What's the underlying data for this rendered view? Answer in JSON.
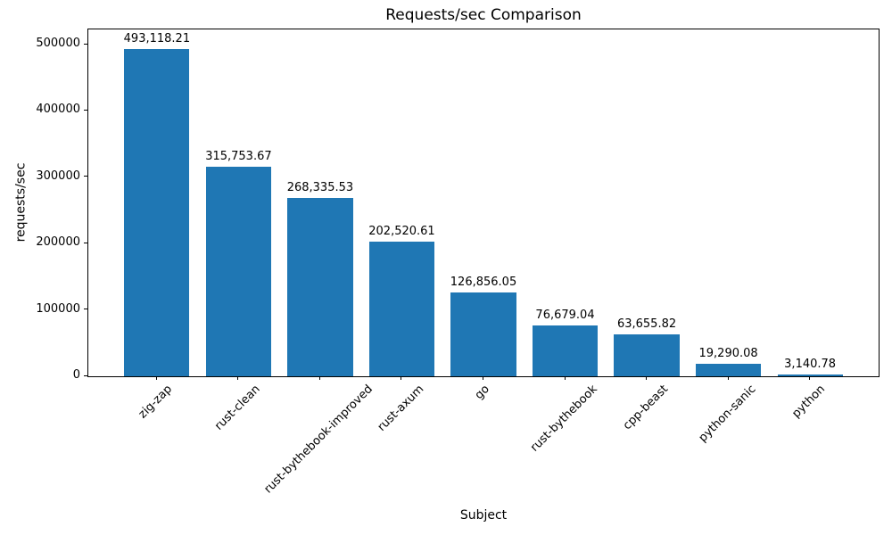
{
  "chart_data": {
    "type": "bar",
    "title": "Requests/sec Comparison",
    "xlabel": "Subject",
    "ylabel": "requests/sec",
    "categories": [
      "zig-zap",
      "rust-clean",
      "rust-bythebook-improved",
      "rust-axum",
      "go",
      "rust-bythebook",
      "cpp-beast",
      "python-sanic",
      "python"
    ],
    "values": [
      493118.21,
      315753.67,
      268335.53,
      202520.61,
      126856.05,
      76679.04,
      63655.82,
      19290.08,
      3140.78
    ],
    "bar_labels": [
      "493,118.21",
      "315,753.67",
      "268,335.53",
      "202,520.61",
      "126,856.05",
      "76,679.04",
      "63,655.82",
      "19,290.08",
      "3,140.78"
    ],
    "yticks": [
      0,
      100000,
      200000,
      300000,
      400000,
      500000
    ],
    "ytick_labels": [
      "0",
      "100000",
      "200000",
      "300000",
      "400000",
      "500000"
    ],
    "ylim": [
      0,
      522850
    ],
    "xlim": [
      -0.84,
      8.84
    ],
    "bar_color": "#1f77b4",
    "background_color": "#ffffff",
    "text_color": "#000000",
    "grid": false,
    "legend": null
  }
}
